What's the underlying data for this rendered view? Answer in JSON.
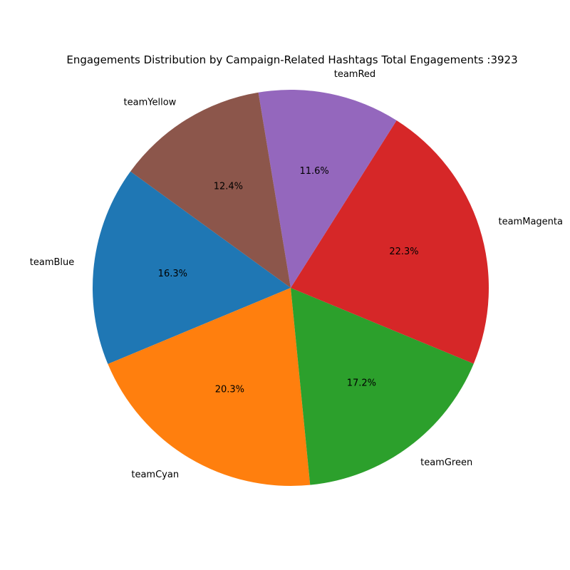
{
  "chart_data": {
    "type": "pie",
    "title": "Engagements Distribution by Campaign-Related Hashtags Total Engagements :3923",
    "total": 3923,
    "start_angle_deg": 144,
    "direction": "counterclockwise",
    "slices": [
      {
        "label": "teamBlue",
        "percent": 16.3,
        "percent_label": "16.3%",
        "color": "#1f77b4"
      },
      {
        "label": "teamCyan",
        "percent": 20.3,
        "percent_label": "20.3%",
        "color": "#ff7f0e"
      },
      {
        "label": "teamGreen",
        "percent": 17.2,
        "percent_label": "17.2%",
        "color": "#2ca02c"
      },
      {
        "label": "teamMagenta",
        "percent": 22.3,
        "percent_label": "22.3%",
        "color": "#d62728"
      },
      {
        "label": "teamRed",
        "percent": 11.6,
        "percent_label": "11.6%",
        "color": "#9467bd"
      },
      {
        "label": "teamYellow",
        "percent": 12.4,
        "percent_label": "12.4%",
        "color": "#8c564b"
      }
    ]
  }
}
